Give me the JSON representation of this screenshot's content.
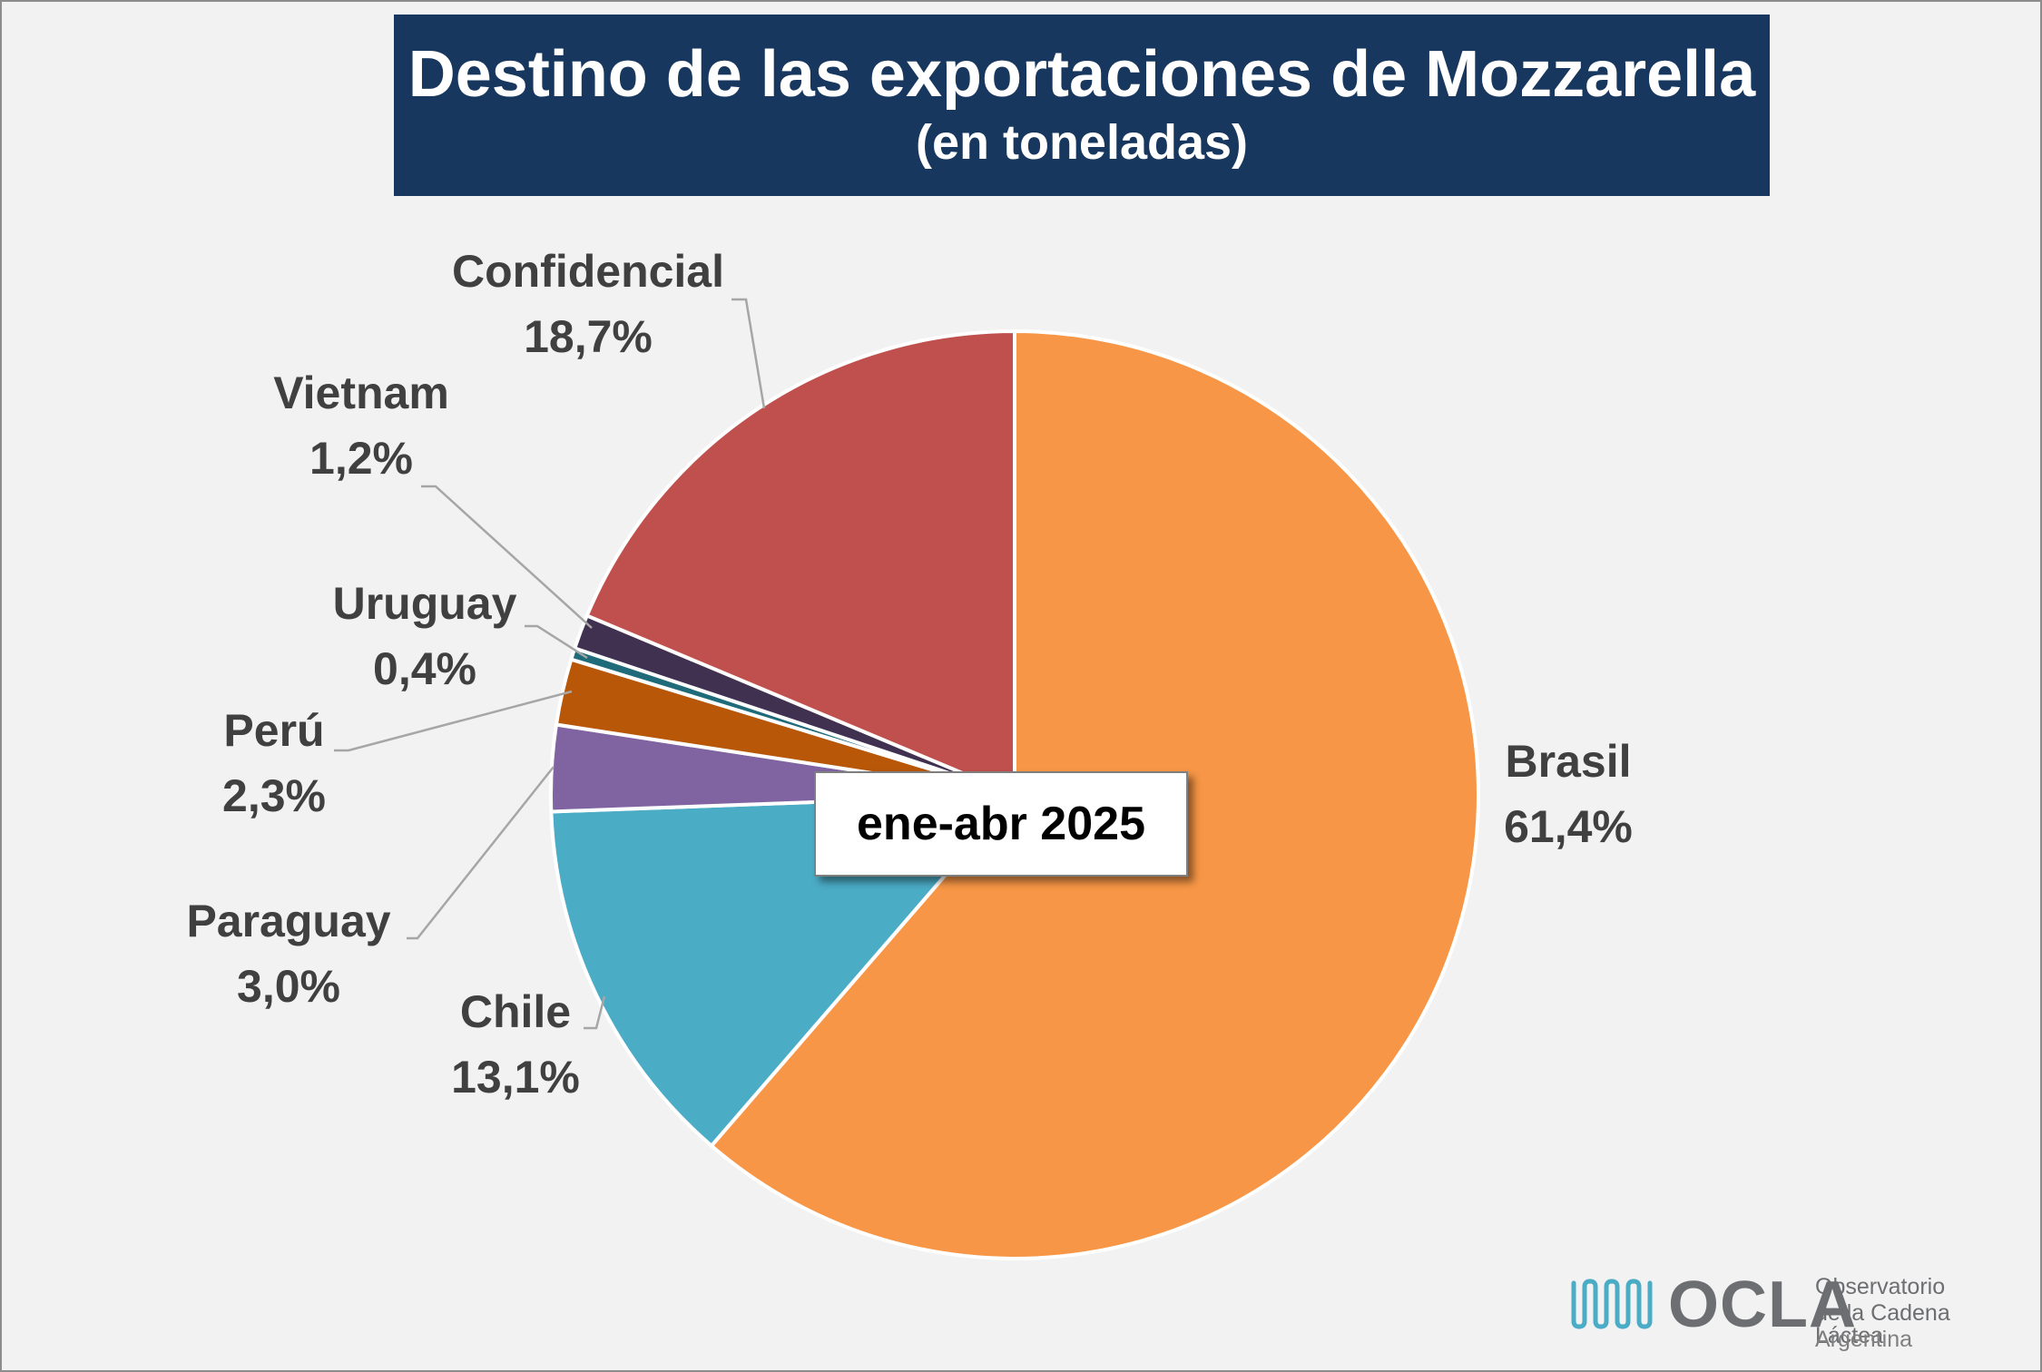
{
  "title": "Destino de las exportaciones de Mozzarella",
  "subtitle": "(en toneladas)",
  "period_label": "ene-abr 2025",
  "chart_data": {
    "type": "pie",
    "title": "Destino de las exportaciones de Mozzarella",
    "subtitle": "(en toneladas)",
    "start_angle_deg": 0,
    "direction": "clockwise",
    "slices": [
      {
        "label": "Brasil",
        "value": 61.4,
        "display": "61,4%",
        "color": "#f79646"
      },
      {
        "label": "Chile",
        "value": 13.1,
        "display": "13,1%",
        "color": "#4bacc6"
      },
      {
        "label": "Paraguay",
        "value": 3.0,
        "display": "3,0%",
        "color": "#8064a2"
      },
      {
        "label": "Perú",
        "value": 2.3,
        "display": "2,3%",
        "color": "#b85708"
      },
      {
        "label": "Uruguay",
        "value": 0.4,
        "display": "0,4%",
        "color": "#1f6b7a"
      },
      {
        "label": "Vietnam",
        "value": 1.2,
        "display": "1,2%",
        "color": "#403151"
      },
      {
        "label": "Confidencial",
        "value": 18.7,
        "display": "18,7%",
        "color": "#c0504d"
      }
    ]
  },
  "logo": {
    "acronym": "OCLA",
    "line1": "Observatorio",
    "line2": "de la Cadena Láctea",
    "line3": "Argentina"
  }
}
